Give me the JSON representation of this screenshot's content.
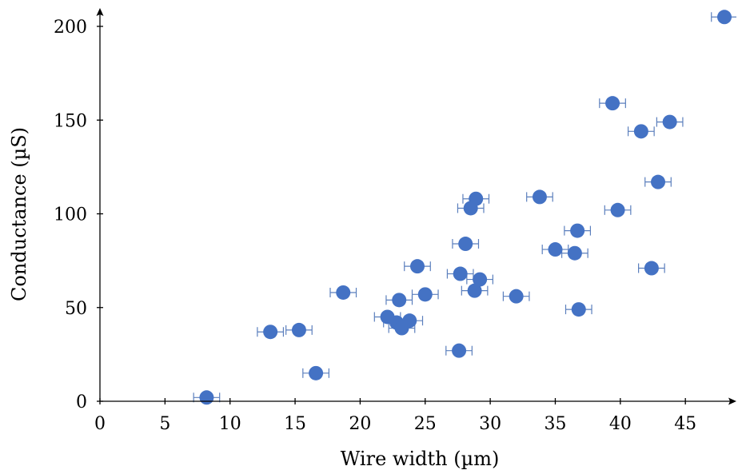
{
  "chart_data": {
    "type": "scatter",
    "xlabel": "Wire width (µm)",
    "ylabel": "Conductance (µS)",
    "xlim": [
      0,
      49
    ],
    "ylim": [
      0,
      210
    ],
    "xticks": [
      0,
      5,
      10,
      15,
      20,
      25,
      30,
      35,
      40,
      45
    ],
    "yticks": [
      0,
      50,
      100,
      150,
      200
    ],
    "x_error": 1,
    "grid": false,
    "legend": false,
    "point_color": "#4472c4",
    "error_color": "#5b7fbd",
    "series": [
      {
        "points": [
          {
            "x": 8.2,
            "y": 2
          },
          {
            "x": 13.1,
            "y": 37
          },
          {
            "x": 15.3,
            "y": 38
          },
          {
            "x": 16.6,
            "y": 15
          },
          {
            "x": 18.7,
            "y": 58
          },
          {
            "x": 22.1,
            "y": 45
          },
          {
            "x": 22.8,
            "y": 42
          },
          {
            "x": 23.0,
            "y": 54
          },
          {
            "x": 23.2,
            "y": 39
          },
          {
            "x": 23.8,
            "y": 43
          },
          {
            "x": 24.4,
            "y": 72
          },
          {
            "x": 25.0,
            "y": 57
          },
          {
            "x": 27.6,
            "y": 27
          },
          {
            "x": 27.7,
            "y": 68
          },
          {
            "x": 28.1,
            "y": 84
          },
          {
            "x": 28.5,
            "y": 103
          },
          {
            "x": 28.8,
            "y": 59
          },
          {
            "x": 28.9,
            "y": 108
          },
          {
            "x": 29.2,
            "y": 65
          },
          {
            "x": 32.0,
            "y": 56
          },
          {
            "x": 33.8,
            "y": 109
          },
          {
            "x": 35.0,
            "y": 81
          },
          {
            "x": 36.5,
            "y": 79
          },
          {
            "x": 36.7,
            "y": 91
          },
          {
            "x": 36.8,
            "y": 49
          },
          {
            "x": 39.4,
            "y": 159
          },
          {
            "x": 39.8,
            "y": 102
          },
          {
            "x": 41.6,
            "y": 144
          },
          {
            "x": 42.4,
            "y": 71
          },
          {
            "x": 42.9,
            "y": 117
          },
          {
            "x": 43.8,
            "y": 149
          },
          {
            "x": 48.0,
            "y": 205
          }
        ]
      }
    ]
  }
}
